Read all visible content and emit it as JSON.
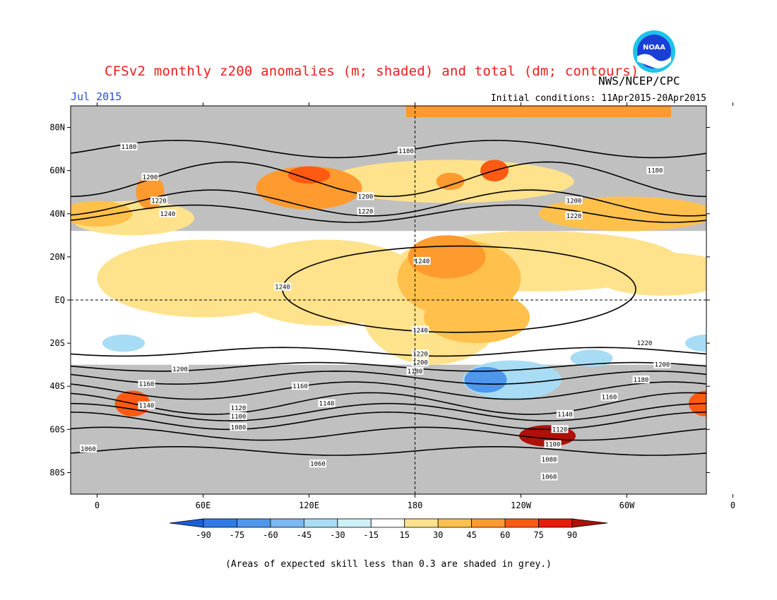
{
  "header": {
    "title": "CFSv2 monthly z200 anomalies (m; shaded) and total (dm; contours)",
    "agency": "NWS/NCEP/CPC",
    "logo_text": "NOAA",
    "month": "Jul 2015",
    "initial_conditions": "Initial conditions: 11Apr2015-20Apr2015"
  },
  "map": {
    "lat_ticks": [
      "80N",
      "60N",
      "40N",
      "20N",
      "EQ",
      "20S",
      "40S",
      "60S",
      "80S"
    ],
    "lon_ticks": [
      "0",
      "60E",
      "120E",
      "180",
      "120W",
      "60W",
      "0"
    ],
    "background_color": "#c0c0c0",
    "contours": [
      {
        "value": "1060",
        "lat": -70,
        "amp": 2,
        "phase": 0
      },
      {
        "value": "1080",
        "lat": -62,
        "amp": 3,
        "phase": 40
      },
      {
        "value": "1100",
        "lat": -56,
        "amp": 4,
        "phase": 60
      },
      {
        "value": "1120",
        "lat": -52,
        "amp": 4,
        "phase": 60
      },
      {
        "value": "1140",
        "lat": -48,
        "amp": 5,
        "phase": 70
      },
      {
        "value": "1160",
        "lat": -42,
        "amp": 4,
        "phase": 80
      },
      {
        "value": "1180",
        "lat": -36,
        "amp": 3,
        "phase": 90
      },
      {
        "value": "1200",
        "lat": -31,
        "amp": 2,
        "phase": 100
      },
      {
        "value": "1220",
        "lat": -24,
        "amp": 2,
        "phase": 120
      },
      {
        "value": "1180",
        "lat": 70,
        "amp": 4,
        "phase": 0
      },
      {
        "value": "1200",
        "lat": 56,
        "amp": 8,
        "phase": 150
      },
      {
        "value": "1220",
        "lat": 45,
        "amp": 6,
        "phase": 160
      },
      {
        "value": "1240",
        "lat": 40,
        "amp": 4,
        "phase": 170
      }
    ],
    "contour_labels": [
      {
        "text": "1180",
        "lon": 18,
        "lat": 71
      },
      {
        "text": "1180",
        "lon": 175,
        "lat": 69
      },
      {
        "text": "1180",
        "lon": 316,
        "lat": 60
      },
      {
        "text": "1200",
        "lon": 30,
        "lat": 57
      },
      {
        "text": "1200",
        "lon": 152,
        "lat": 48
      },
      {
        "text": "1200",
        "lon": 270,
        "lat": 46
      },
      {
        "text": "1220",
        "lon": 35,
        "lat": 46
      },
      {
        "text": "1220",
        "lon": 152,
        "lat": 41
      },
      {
        "text": "1220",
        "lon": 270,
        "lat": 39
      },
      {
        "text": "1240",
        "lon": 40,
        "lat": 40
      },
      {
        "text": "1240",
        "lon": 184,
        "lat": 18
      },
      {
        "text": "1240",
        "lon": 105,
        "lat": 6
      },
      {
        "text": "1240",
        "lon": 183,
        "lat": -14
      },
      {
        "text": "1220",
        "lon": 310,
        "lat": -20
      },
      {
        "text": "1220",
        "lon": 183,
        "lat": -25
      },
      {
        "text": "1200",
        "lon": 183,
        "lat": -29
      },
      {
        "text": "1200",
        "lon": 320,
        "lat": -30
      },
      {
        "text": "1200",
        "lon": 47,
        "lat": -32
      },
      {
        "text": "1180",
        "lon": 180,
        "lat": -33
      },
      {
        "text": "1180",
        "lon": 308,
        "lat": -37
      },
      {
        "text": "1160",
        "lon": 28,
        "lat": -39
      },
      {
        "text": "1160",
        "lon": 115,
        "lat": -40
      },
      {
        "text": "1160",
        "lon": 290,
        "lat": -45
      },
      {
        "text": "1140",
        "lon": 28,
        "lat": -49
      },
      {
        "text": "1140",
        "lon": 130,
        "lat": -48
      },
      {
        "text": "1140",
        "lon": 265,
        "lat": -53
      },
      {
        "text": "1120",
        "lon": 80,
        "lat": -50
      },
      {
        "text": "1120",
        "lon": 262,
        "lat": -60
      },
      {
        "text": "1100",
        "lon": 80,
        "lat": -54
      },
      {
        "text": "1100",
        "lon": 258,
        "lat": -67
      },
      {
        "text": "1080",
        "lon": 80,
        "lat": -59
      },
      {
        "text": "1080",
        "lon": 256,
        "lat": -74
      },
      {
        "text": "1060",
        "lon": -5,
        "lat": -69
      },
      {
        "text": "1060",
        "lon": 125,
        "lat": -76
      },
      {
        "text": "1060",
        "lon": 256,
        "lat": -82
      }
    ]
  },
  "colorbar": {
    "labels": [
      "-90",
      "-75",
      "-60",
      "-45",
      "-30",
      "-15",
      "15",
      "30",
      "45",
      "60",
      "75",
      "90"
    ],
    "colors": [
      "#1a5fd9",
      "#2f7ae6",
      "#4f97ec",
      "#7cb8f1",
      "#a8dcf5",
      "#cdf1f7",
      "#ffffff",
      "#ffe28c",
      "#ffc14c",
      "#ff9a2e",
      "#ff5a12",
      "#e81a0a",
      "#b0100a"
    ]
  },
  "footnote": "(Areas of expected skill less than 0.3 are shaded in grey.)"
}
